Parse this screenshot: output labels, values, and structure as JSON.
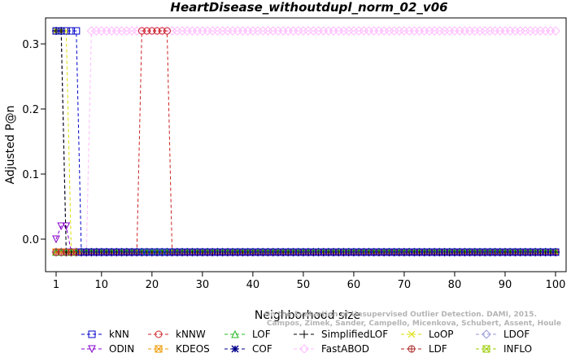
{
  "chart_data": {
    "type": "line",
    "title": "HeartDisease_withoutdupl_norm_02_v06",
    "xlabel": "Neighborhood size",
    "ylabel": "Adjusted P@n",
    "xlim": [
      1,
      100
    ],
    "ylim": [
      -0.05,
      0.34
    ],
    "x_ticks": [
      1,
      10,
      20,
      30,
      40,
      50,
      60,
      70,
      80,
      90,
      100
    ],
    "y_ticks": [
      0.0,
      0.1,
      0.2,
      0.3
    ],
    "x_tick_labels": [
      "1",
      "10",
      "20",
      "30",
      "40",
      "50",
      "60",
      "70",
      "80",
      "90",
      "100"
    ],
    "y_tick_labels": [
      "0.0",
      "0.1",
      "0.2",
      "0.3"
    ],
    "grid": false,
    "legend_position": "bottom",
    "credit": {
      "line1": "Campos, Zimek, Sander, Campello, Micenkova, Schubert, Assent, Houle",
      "line2": "On the Evaluation of Unsupervised Outlier Detection. DAMI, 2015."
    },
    "series": [
      {
        "name": "kNN",
        "color": "#0000cc",
        "marker": "square",
        "x": [
          1,
          2,
          3,
          4,
          5,
          6,
          100
        ],
        "y": [
          0.32,
          0.32,
          0.32,
          0.32,
          0.32,
          -0.02,
          -0.02
        ]
      },
      {
        "name": "kNNW",
        "color": "#cc2222",
        "marker": "circle",
        "x": [
          1,
          17,
          18,
          19,
          20,
          21,
          22,
          23,
          24,
          100
        ],
        "y": [
          -0.02,
          -0.02,
          0.32,
          0.32,
          0.32,
          0.32,
          0.32,
          0.32,
          -0.02,
          -0.02
        ]
      },
      {
        "name": "LOF",
        "color": "#22bb22",
        "marker": "triangle-up",
        "x": [
          1,
          100
        ],
        "y": [
          -0.02,
          -0.02
        ]
      },
      {
        "name": "SimplifiedLOF",
        "color": "#000000",
        "marker": "plus",
        "x": [
          1,
          2,
          3,
          100
        ],
        "y": [
          0.32,
          0.32,
          -0.02,
          -0.02
        ]
      },
      {
        "name": "LoOP",
        "color": "#dddd00",
        "marker": "cross",
        "x": [
          1,
          2,
          3,
          4,
          100
        ],
        "y": [
          0.32,
          0.32,
          0.32,
          -0.02,
          -0.02
        ]
      },
      {
        "name": "LDOF",
        "color": "#9999dd",
        "marker": "diamond",
        "x": [
          1,
          100
        ],
        "y": [
          -0.02,
          -0.02
        ]
      },
      {
        "name": "ODIN",
        "color": "#8800cc",
        "marker": "triangle-down",
        "x": [
          1,
          2,
          3,
          4,
          100
        ],
        "y": [
          0.0,
          0.02,
          0.02,
          -0.02,
          -0.02
        ]
      },
      {
        "name": "KDEOS",
        "color": "#ee9900",
        "marker": "square-x",
        "x": [
          1,
          2,
          3,
          4,
          5,
          100
        ],
        "y": [
          -0.02,
          -0.02,
          -0.02,
          -0.02,
          -0.02,
          -0.02
        ]
      },
      {
        "name": "COF",
        "color": "#000088",
        "marker": "asterisk",
        "x": [
          1,
          2,
          3,
          100
        ],
        "y": [
          0.32,
          0.32,
          -0.02,
          -0.02
        ]
      },
      {
        "name": "FastABOD",
        "color": "#ffbbff",
        "marker": "diamond",
        "x": [
          1,
          7,
          8,
          9,
          10,
          11,
          12,
          13,
          14,
          15,
          100
        ],
        "y": [
          -0.02,
          -0.02,
          0.32,
          0.32,
          0.32,
          0.32,
          0.32,
          0.32,
          0.32,
          0.32,
          0.32
        ]
      },
      {
        "name": "LDF",
        "color": "#aa2222",
        "marker": "circle-plus",
        "x": [
          1,
          100
        ],
        "y": [
          -0.02,
          -0.02
        ]
      },
      {
        "name": "INFLO",
        "color": "#99cc00",
        "marker": "square-x",
        "x": [
          1,
          100
        ],
        "y": [
          -0.02,
          -0.02
        ]
      }
    ]
  }
}
